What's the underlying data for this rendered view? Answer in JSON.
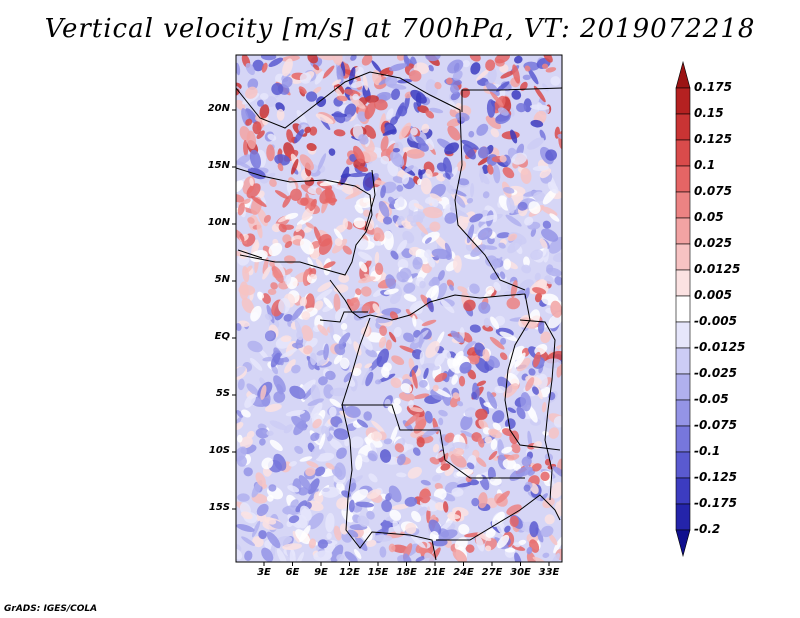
{
  "title": "Vertical velocity [m/s] at 700hPa, VT: 2019072218",
  "credit": "GrADS: IGES/COLA",
  "lat_labels": [
    "20N",
    "15N",
    "10N",
    "5N",
    "EQ",
    "5S",
    "10S",
    "15S"
  ],
  "lon_labels": [
    "3E",
    "6E",
    "9E",
    "12E",
    "15E",
    "18E",
    "21E",
    "24E",
    "27E",
    "30E",
    "33E"
  ],
  "colorbar": {
    "labels": [
      "0.175",
      "0.15",
      "0.125",
      "0.1",
      "0.075",
      "0.05",
      "0.025",
      "0.0125",
      "0.005",
      "-0.005",
      "-0.0125",
      "-0.025",
      "-0.05",
      "-0.075",
      "-0.1",
      "-0.125",
      "-0.175",
      "-0.2"
    ],
    "colors": [
      "#9b1414",
      "#b52121",
      "#c93434",
      "#d94b4b",
      "#e56565",
      "#ec8383",
      "#f2a3a3",
      "#f7c3c3",
      "#fbe2e2",
      "#ffffff",
      "#e6e6fb",
      "#ccccf5",
      "#b0b0ee",
      "#9494e6",
      "#7777dc",
      "#5a5ad0",
      "#3c3cc0",
      "#2424aa",
      "#10108e"
    ]
  }
}
